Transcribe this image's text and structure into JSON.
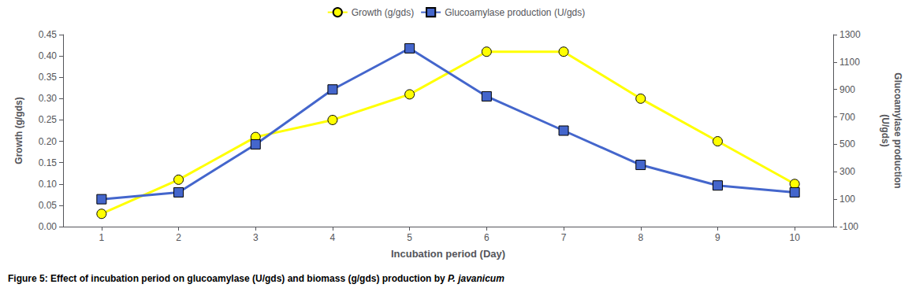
{
  "chart_data": {
    "type": "line",
    "x": [
      1,
      2,
      3,
      4,
      5,
      6,
      7,
      8,
      9,
      10
    ],
    "xlim": [
      0.5,
      10.5
    ],
    "xticks": [
      1,
      2,
      3,
      4,
      5,
      6,
      7,
      8,
      9,
      10
    ],
    "xlabel": "Incubation period (Day)",
    "ylabel": "Growth (g/gds)",
    "y2label": "Glucoamylase production\n(U/gds)",
    "ylim": [
      0,
      0.45
    ],
    "yticks": [
      {
        "value": 0,
        "label": "0.00"
      },
      0.05,
      {
        "value": 0.1,
        "label": "0.10"
      },
      0.15,
      {
        "value": 0.2,
        "label": "0.20"
      },
      0.25,
      {
        "value": 0.3,
        "label": "0.30"
      },
      0.35,
      {
        "value": 0.4,
        "label": "0.40"
      },
      0.45
    ],
    "y2lim": [
      -100,
      1300
    ],
    "y2ticks": [
      -100,
      100,
      300,
      500,
      700,
      900,
      1100,
      1300
    ],
    "series": [
      {
        "name": "Growth (g/gds)",
        "color": "#ffff00",
        "marker": "circle",
        "values": [
          0.03,
          0.11,
          0.21,
          0.25,
          0.31,
          0.41,
          0.41,
          0.3,
          0.2,
          0.1
        ]
      },
      {
        "name": "Glucoamylase production (U/gds)",
        "color": "#4466cc",
        "marker": "square",
        "axis": "y2",
        "values": [
          100,
          150,
          500,
          900,
          1200,
          850,
          600,
          350,
          200,
          150
        ]
      }
    ],
    "legend": "top",
    "grid": false,
    "caption": [
      "Figure 5: Effect of incubation period on glucoamylase (U/gds) and biomass (g/gds) production by ",
      "P. javanicum"
    ]
  }
}
